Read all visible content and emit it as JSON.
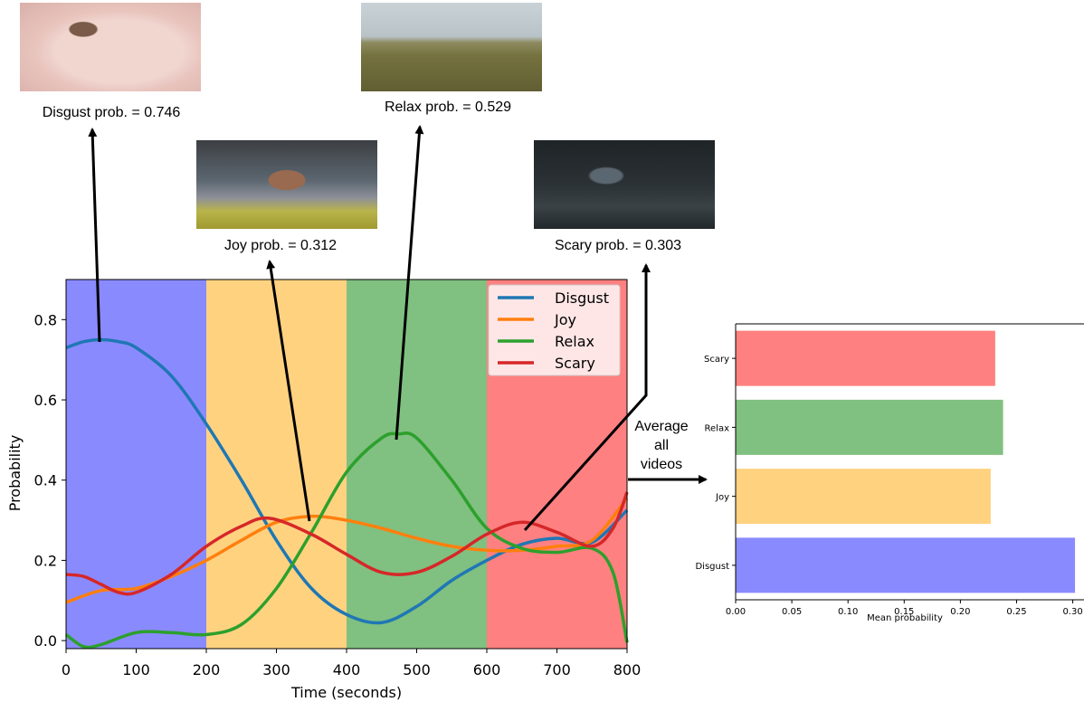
{
  "thumbnails": [
    {
      "name": "disgust",
      "caption": "Disgust prob. = 0.746"
    },
    {
      "name": "relax",
      "caption": "Relax prob. = 0.529"
    },
    {
      "name": "joy",
      "caption": "Joy prob. = 0.312"
    },
    {
      "name": "scary",
      "caption": "Scary prob. = 0.303"
    }
  ],
  "average_label": [
    "Average",
    "all",
    "videos"
  ],
  "colors": {
    "disgust_line": "#1f77b4",
    "joy_line": "#ff7f0e",
    "relax_line": "#2ca02c",
    "scary_line": "#d62728",
    "disgust_band": "#8a8aff",
    "joy_band": "#ffd280",
    "relax_band": "#80c080",
    "scary_band": "#ff8080"
  },
  "chart_data": [
    {
      "type": "line",
      "xlabel": "Time (seconds)",
      "ylabel": "Probability",
      "xlim": [
        0,
        800
      ],
      "ylim": [
        -0.02,
        0.9
      ],
      "xticks": [
        0,
        100,
        200,
        300,
        400,
        500,
        600,
        700,
        800
      ],
      "yticks": [
        0.0,
        0.2,
        0.4,
        0.6,
        0.8
      ],
      "ytick_labels": [
        "0.0",
        "0.2",
        "0.4",
        "0.6",
        "0.8"
      ],
      "grid": false,
      "legend": "top-right",
      "bands": [
        {
          "from": 0,
          "to": 200,
          "label": "Disgust"
        },
        {
          "from": 200,
          "to": 400,
          "label": "Joy"
        },
        {
          "from": 400,
          "to": 600,
          "label": "Relax"
        },
        {
          "from": 600,
          "to": 800,
          "label": "Scary"
        }
      ],
      "series": [
        {
          "name": "Disgust",
          "x": [
            0,
            25,
            50,
            75,
            100,
            150,
            200,
            250,
            300,
            350,
            400,
            450,
            500,
            550,
            600,
            650,
            700,
            750,
            800
          ],
          "y": [
            0.73,
            0.745,
            0.75,
            0.745,
            0.73,
            0.66,
            0.54,
            0.4,
            0.25,
            0.13,
            0.065,
            0.045,
            0.085,
            0.15,
            0.2,
            0.24,
            0.255,
            0.245,
            0.325
          ]
        },
        {
          "name": "Joy",
          "x": [
            0,
            50,
            100,
            150,
            200,
            250,
            300,
            350,
            400,
            450,
            500,
            550,
            600,
            650,
            700,
            750,
            800
          ],
          "y": [
            0.095,
            0.125,
            0.13,
            0.16,
            0.2,
            0.25,
            0.295,
            0.31,
            0.3,
            0.28,
            0.255,
            0.235,
            0.225,
            0.225,
            0.235,
            0.25,
            0.355
          ]
        },
        {
          "name": "Relax",
          "x": [
            0,
            25,
            50,
            100,
            150,
            200,
            250,
            300,
            350,
            400,
            450,
            475,
            500,
            550,
            600,
            650,
            700,
            750,
            780,
            800
          ],
          "y": [
            0.015,
            -0.015,
            -0.01,
            0.02,
            0.02,
            0.015,
            0.04,
            0.13,
            0.27,
            0.42,
            0.505,
            0.515,
            0.505,
            0.4,
            0.28,
            0.23,
            0.22,
            0.23,
            0.17,
            -0.005
          ]
        },
        {
          "name": "Scary",
          "x": [
            0,
            25,
            50,
            75,
            100,
            150,
            200,
            250,
            290,
            350,
            400,
            450,
            500,
            550,
            600,
            650,
            700,
            750,
            780,
            800
          ],
          "y": [
            0.165,
            0.16,
            0.14,
            0.12,
            0.12,
            0.165,
            0.235,
            0.285,
            0.305,
            0.265,
            0.215,
            0.17,
            0.17,
            0.21,
            0.265,
            0.295,
            0.27,
            0.235,
            0.28,
            0.37
          ]
        }
      ]
    },
    {
      "type": "bar",
      "orientation": "horizontal",
      "categories": [
        "Disgust",
        "Joy",
        "Relax",
        "Scary"
      ],
      "values": [
        0.302,
        0.227,
        0.238,
        0.231
      ],
      "xlabel": "Mean probability",
      "xlim": [
        0,
        0.31
      ],
      "xticks": [
        0.0,
        0.05,
        0.1,
        0.15,
        0.2,
        0.25,
        0.3
      ],
      "xtick_labels": [
        "0.00",
        "0.05",
        "0.10",
        "0.15",
        "0.20",
        "0.25",
        "0.30"
      ],
      "legend": "none"
    }
  ]
}
